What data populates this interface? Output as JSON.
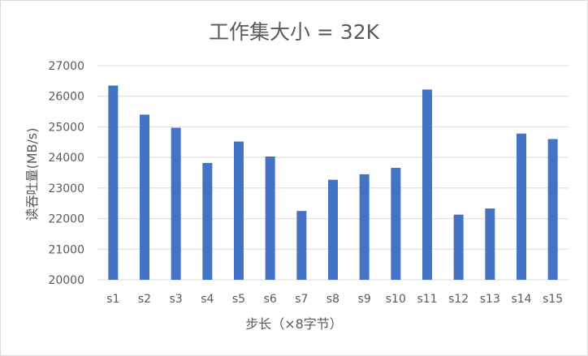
{
  "chart_data": {
    "type": "bar",
    "title": "工作集大小 = 32K",
    "xlabel": "步长（×8字节）",
    "ylabel": "读吞吐量(MB/s)",
    "categories": [
      "s1",
      "s2",
      "s3",
      "s4",
      "s5",
      "s6",
      "s7",
      "s8",
      "s9",
      "s10",
      "s11",
      "s12",
      "s13",
      "s14",
      "s15"
    ],
    "values": [
      26350,
      25400,
      24970,
      23820,
      24520,
      24030,
      22250,
      23270,
      23450,
      23660,
      26220,
      22130,
      22330,
      24780,
      24600
    ],
    "ylim": [
      20000,
      27000
    ],
    "yticks": [
      20000,
      21000,
      22000,
      23000,
      24000,
      25000,
      26000,
      27000
    ],
    "grid": true,
    "legend": "none",
    "bar_color": "#4472C4",
    "grid_color": "#d9d9d9",
    "text_color": "#595959"
  }
}
